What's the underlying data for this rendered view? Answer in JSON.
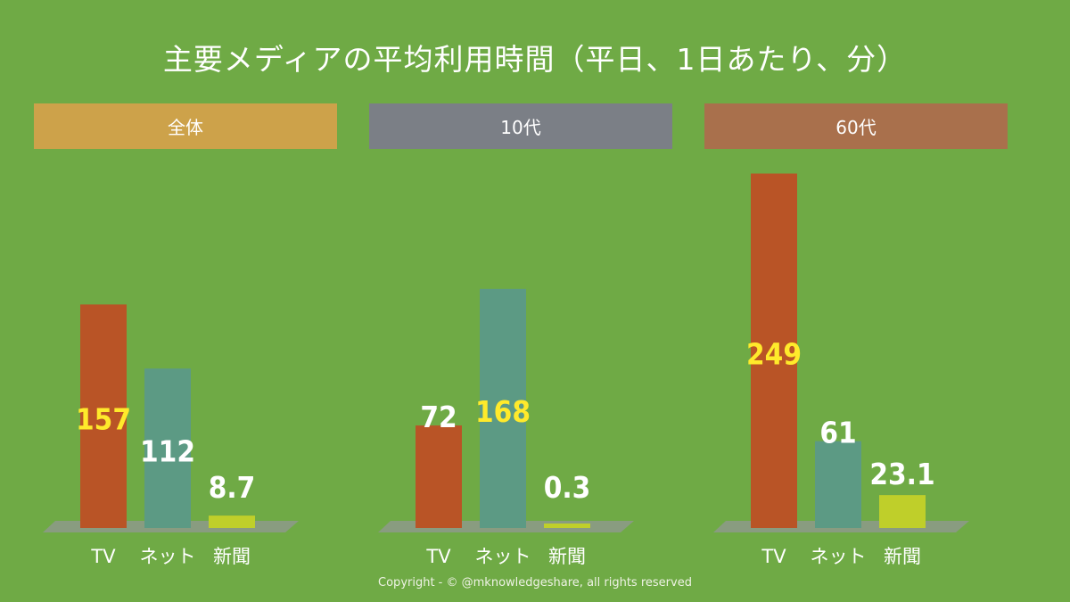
{
  "title": "主要メディアの平均利用時間（平日、1日あたり、分）",
  "copyright": "Copyright - © @mknowledgeshare, all rights reserved",
  "colors": {
    "background": "#6faa45",
    "tv": "#b95426",
    "net": "#5c9a84",
    "newspaper": "#bfcf2a",
    "floor": "#8c9a86",
    "label_yellow": "#ffea2b",
    "label_white": "#ffffff"
  },
  "chart_data": [
    {
      "type": "bar",
      "group": "全体",
      "header_color": "#cda24a",
      "categories": [
        "TV",
        "ネット",
        "新聞"
      ],
      "values": [
        157,
        112,
        8.7
      ],
      "value_labels": [
        "157",
        "112",
        "8.7"
      ],
      "label_colors": [
        "#ffea2b",
        "#ffffff",
        "#ffffff"
      ],
      "ylim": [
        0,
        260
      ]
    },
    {
      "type": "bar",
      "group": "10代",
      "header_color": "#7b7f86",
      "categories": [
        "TV",
        "ネット",
        "新聞"
      ],
      "values": [
        72,
        168,
        0.3
      ],
      "value_labels": [
        "72",
        "168",
        "0.3"
      ],
      "label_colors": [
        "#ffffff",
        "#ffea2b",
        "#ffffff"
      ],
      "ylim": [
        0,
        260
      ]
    },
    {
      "type": "bar",
      "group": "60代",
      "header_color": "#a9704c",
      "categories": [
        "TV",
        "ネット",
        "新聞"
      ],
      "values": [
        249,
        61,
        23.1
      ],
      "value_labels": [
        "249",
        "61",
        "23.1"
      ],
      "label_colors": [
        "#ffea2b",
        "#ffffff",
        "#ffffff"
      ],
      "ylim": [
        0,
        260
      ]
    }
  ]
}
